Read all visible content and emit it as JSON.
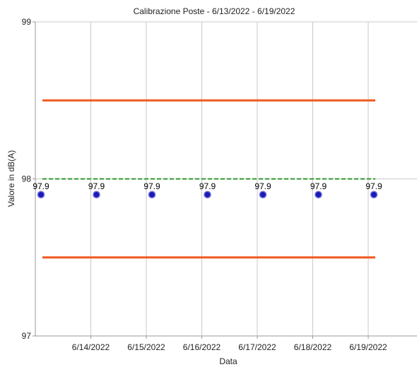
{
  "chart_data": {
    "type": "scatter",
    "title": "Calibrazione Poste - 6/13/2022 - 6/19/2022",
    "xlabel": "Data",
    "ylabel": "Valore in dB(A)",
    "ylim": [
      97,
      99
    ],
    "yticks": [
      "97",
      "98",
      "99"
    ],
    "xlim": [
      "6/13/2022",
      "6/20/2022"
    ],
    "xticks": [
      "6/14/2022",
      "6/15/2022",
      "6/16/2022",
      "6/17/2022",
      "6/18/2022",
      "6/19/2022"
    ],
    "grid": true,
    "points": [
      {
        "x": "6/13/2022",
        "y": 97.9,
        "label": "97.9"
      },
      {
        "x": "6/14/2022",
        "y": 97.9,
        "label": "97.9"
      },
      {
        "x": "6/15/2022",
        "y": 97.9,
        "label": "97.9"
      },
      {
        "x": "6/16/2022",
        "y": 97.9,
        "label": "97.9"
      },
      {
        "x": "6/17/2022",
        "y": 97.9,
        "label": "97.9"
      },
      {
        "x": "6/18/2022",
        "y": 97.9,
        "label": "97.9"
      },
      {
        "x": "6/19/2022",
        "y": 97.9,
        "label": "97.9"
      }
    ],
    "reference_lines": [
      {
        "kind": "upper-limit",
        "y": 98.5,
        "x_start": "6/13/2022",
        "x_end": "6/19/2022",
        "color": "#f05a1e",
        "style": "solid"
      },
      {
        "kind": "target",
        "y": 98.0,
        "x_start": "6/13/2022",
        "x_end": "6/19/2022",
        "color": "#2e9a2e",
        "style": "dashed"
      },
      {
        "kind": "lower-limit",
        "y": 97.5,
        "x_start": "6/13/2022",
        "x_end": "6/19/2022",
        "color": "#f05a1e",
        "style": "solid"
      }
    ],
    "marker_color": "#1a1ab8",
    "marker_edge_color": "#6a6ad8"
  }
}
